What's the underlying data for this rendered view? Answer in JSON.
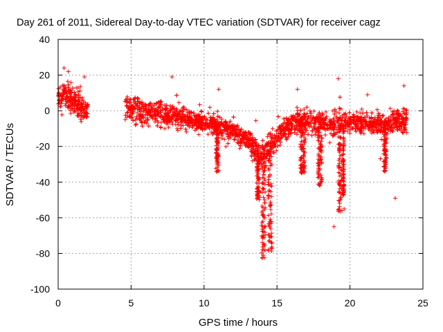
{
  "chart_data": {
    "type": "scatter",
    "title": "Day 261 of 2011, Sidereal Day-to-day VTEC variation (SDTVAR) for receiver cagz",
    "xlabel": "GPS time / hours",
    "ylabel": "SDTVAR / TECUs",
    "xlim": [
      0,
      25
    ],
    "ylim": [
      -100,
      40
    ],
    "x_ticks": [
      0,
      5,
      10,
      15,
      20,
      25
    ],
    "y_ticks": [
      -100,
      -80,
      -60,
      -40,
      -20,
      0,
      20,
      40
    ],
    "x_tick_labels": [
      "0",
      "5",
      "10",
      "15",
      "20",
      "25"
    ],
    "y_tick_labels": [
      "-100",
      "-80",
      "-60",
      "-40",
      "-20",
      "0",
      "20",
      "40"
    ],
    "grid": true,
    "marker": "plus",
    "series": [
      {
        "name": "SDTVAR",
        "color": "#ff0000",
        "trend": [
          {
            "x": 0.0,
            "y": 8,
            "spread": 7
          },
          {
            "x": 0.5,
            "y": 9,
            "spread": 7
          },
          {
            "x": 1.0,
            "y": 6,
            "spread": 7
          },
          {
            "x": 1.5,
            "y": 3,
            "spread": 7
          },
          {
            "x": 2.0,
            "y": 0,
            "spread": 6
          },
          {
            "x": 4.6,
            "y": 2,
            "spread": 6
          },
          {
            "x": 5.5,
            "y": 0,
            "spread": 6
          },
          {
            "x": 6.5,
            "y": -1,
            "spread": 6
          },
          {
            "x": 7.5,
            "y": -2,
            "spread": 6
          },
          {
            "x": 8.5,
            "y": -4,
            "spread": 5
          },
          {
            "x": 9.5,
            "y": -6,
            "spread": 5
          },
          {
            "x": 10.5,
            "y": -7,
            "spread": 5
          },
          {
            "x": 11.5,
            "y": -10,
            "spread": 5
          },
          {
            "x": 12.5,
            "y": -14,
            "spread": 5
          },
          {
            "x": 13.5,
            "y": -21,
            "spread": 6
          },
          {
            "x": 14.0,
            "y": -25,
            "spread": 7
          },
          {
            "x": 14.5,
            "y": -20,
            "spread": 6
          },
          {
            "x": 15.0,
            "y": -15,
            "spread": 5
          },
          {
            "x": 15.5,
            "y": -10,
            "spread": 5
          },
          {
            "x": 16.5,
            "y": -6,
            "spread": 6
          },
          {
            "x": 17.5,
            "y": -7,
            "spread": 6
          },
          {
            "x": 18.5,
            "y": -8,
            "spread": 6
          },
          {
            "x": 19.5,
            "y": -7,
            "spread": 6
          },
          {
            "x": 20.5,
            "y": -6,
            "spread": 5
          },
          {
            "x": 21.5,
            "y": -7,
            "spread": 5
          },
          {
            "x": 22.5,
            "y": -8,
            "spread": 6
          },
          {
            "x": 23.5,
            "y": -6,
            "spread": 6
          },
          {
            "x": 23.9,
            "y": -5,
            "spread": 6
          }
        ],
        "dips": [
          {
            "x_start": 13.95,
            "x_end": 14.2,
            "y_min": -83
          },
          {
            "x_start": 14.4,
            "x_end": 14.65,
            "y_min": -79
          },
          {
            "x_start": 13.6,
            "x_end": 13.8,
            "y_min": -50
          },
          {
            "x_start": 16.6,
            "x_end": 16.9,
            "y_min": -35
          },
          {
            "x_start": 17.8,
            "x_end": 18.1,
            "y_min": -42
          },
          {
            "x_start": 19.2,
            "x_end": 19.45,
            "y_min": -57
          },
          {
            "x_start": 19.5,
            "x_end": 19.6,
            "y_min": -48
          },
          {
            "x_start": 22.3,
            "x_end": 22.5,
            "y_min": -35
          },
          {
            "x_start": 10.8,
            "x_end": 11.0,
            "y_min": -35
          }
        ],
        "outliers": [
          {
            "x": 0.4,
            "y": 24
          },
          {
            "x": 0.7,
            "y": 22
          },
          {
            "x": 7.8,
            "y": 19
          },
          {
            "x": 11.0,
            "y": 12
          },
          {
            "x": 19.2,
            "y": 18
          },
          {
            "x": 23.7,
            "y": 14
          },
          {
            "x": 18.9,
            "y": -65
          },
          {
            "x": 23.1,
            "y": -49
          },
          {
            "x": 19.6,
            "y": -55
          },
          {
            "x": 1.8,
            "y": 19
          },
          {
            "x": 16.4,
            "y": 12
          },
          {
            "x": 21.2,
            "y": 9
          }
        ],
        "n_points": 3200
      }
    ]
  }
}
